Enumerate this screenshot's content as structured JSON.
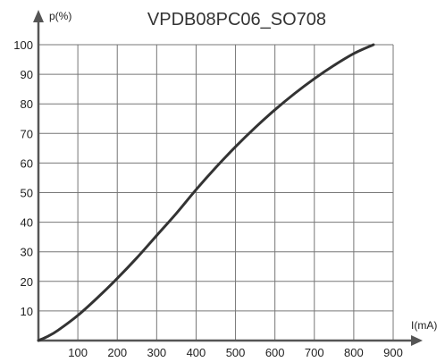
{
  "chart_data": {
    "type": "line",
    "title": "VPDB08PC06_SO708",
    "xlabel": "I(mA)",
    "ylabel": "p(%)",
    "xlim": [
      0,
      900
    ],
    "ylim": [
      0,
      100
    ],
    "x_ticks": [
      100,
      200,
      300,
      400,
      500,
      600,
      700,
      800,
      900
    ],
    "y_ticks": [
      10,
      20,
      30,
      40,
      50,
      60,
      70,
      80,
      90,
      100
    ],
    "grid": true,
    "legend": "none",
    "series": [
      {
        "color": "#333333",
        "x": [
          0,
          25,
          50,
          100,
          150,
          200,
          250,
          300,
          350,
          400,
          450,
          500,
          550,
          600,
          650,
          700,
          750,
          800,
          850
        ],
        "y": [
          0,
          1.5,
          3.5,
          8.5,
          14.5,
          21,
          28,
          35.5,
          43,
          51,
          58.5,
          65.5,
          72,
          78,
          83.5,
          88.5,
          93,
          97,
          100
        ]
      }
    ]
  }
}
